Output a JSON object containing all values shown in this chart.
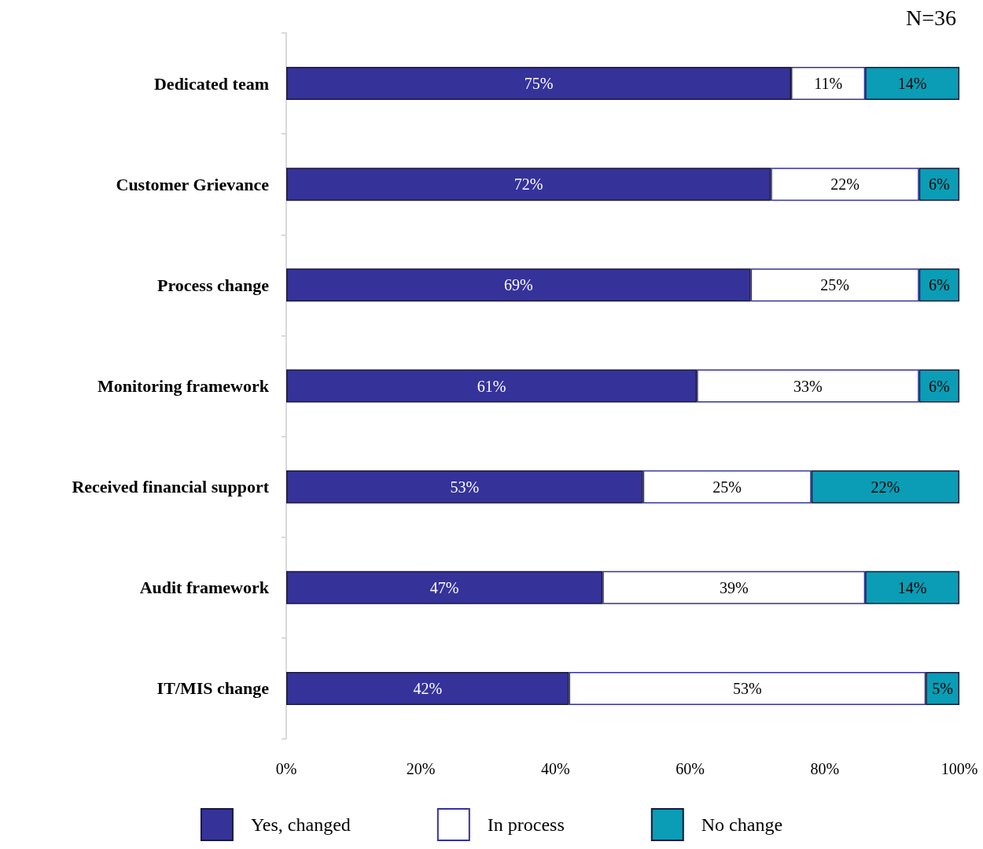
{
  "chart_data": {
    "type": "bar",
    "orientation": "horizontal",
    "stacked": true,
    "categories": [
      "Dedicated team",
      "Customer Grievance",
      "Process change",
      "Monitoring framework",
      "Received financial support",
      "Audit framework",
      "IT/MIS change"
    ],
    "series": [
      {
        "name": "Yes, changed",
        "color": "#35329a",
        "values": [
          75,
          72,
          69,
          61,
          53,
          47,
          42
        ],
        "value_labels": [
          "75%",
          "72%",
          "69%",
          "61%",
          "53%",
          "47%",
          "42%"
        ]
      },
      {
        "name": "In process",
        "color": "#ffffff",
        "values": [
          11,
          22,
          25,
          33,
          25,
          39,
          53
        ],
        "value_labels": [
          "11%",
          "22%",
          "25%",
          "33%",
          "25%",
          "39%",
          "53%"
        ]
      },
      {
        "name": "No change",
        "color": "#0a9db5",
        "values": [
          14,
          6,
          6,
          6,
          22,
          14,
          5
        ],
        "value_labels": [
          "14%",
          "6%",
          "6%",
          "6%",
          "22%",
          "14%",
          "5%"
        ]
      }
    ],
    "xlim": [
      0,
      100
    ],
    "xticks": [
      {
        "value": 0,
        "label": "0%"
      },
      {
        "value": 20,
        "label": "20%"
      },
      {
        "value": 40,
        "label": "40%"
      },
      {
        "value": 60,
        "label": "60%"
      },
      {
        "value": 80,
        "label": "80%"
      },
      {
        "value": 100,
        "label": "100%"
      }
    ],
    "annotations": [
      "N=36"
    ],
    "grid": false,
    "legend": "bottom"
  }
}
